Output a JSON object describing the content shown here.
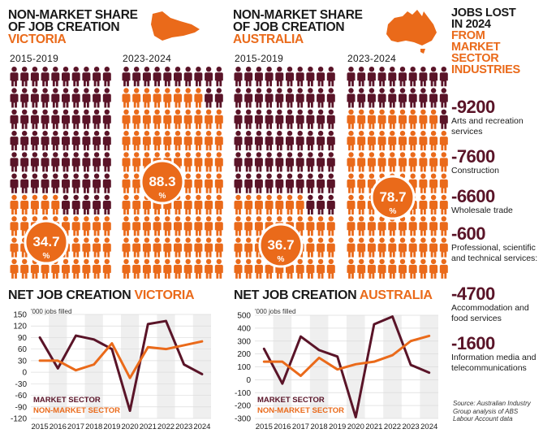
{
  "colors": {
    "market": "#5a1428",
    "nonmarket": "#ea6a1a",
    "grid": "#e6e6e6"
  },
  "panels": {
    "vic": {
      "title1": "NON-MARKET SHARE",
      "title2": "OF JOB CREATION",
      "region": "VICTORIA",
      "period1": "2015-2019",
      "period2": "2023-2024",
      "pct1": "34.7",
      "pct2": "88.3",
      "pct_sign": "%",
      "icon": "victoria-map-icon"
    },
    "aus": {
      "title1": "NON-MARKET SHARE",
      "title2": "OF JOB CREATION",
      "region": "AUSTRALIA",
      "period1": "2015-2019",
      "period2": "2023-2024",
      "pct1": "36.7",
      "pct2": "78.7",
      "pct_sign": "%",
      "icon": "australia-map-icon"
    }
  },
  "side": {
    "title1": "JOBS LOST",
    "title2": "IN 2024",
    "title3": "FROM",
    "title4": "MARKET",
    "title5": "SECTOR",
    "title6": "INDUSTRIES",
    "items": [
      {
        "value": "-9200",
        "label": "Arts and recreation services"
      },
      {
        "value": "-7600",
        "label": "Construction"
      },
      {
        "value": "-6600",
        "label": "Wholesale trade"
      },
      {
        "value": "-600",
        "label": "Professional, scientific and technical services:"
      },
      {
        "value": "-4700",
        "label": "Accommodation and food services"
      },
      {
        "value": "-1600",
        "label": "Information media and telecommunications"
      }
    ],
    "source": "Source: Australian Industry Group analysis of ABS Labour Account data"
  },
  "chart_data": [
    {
      "type": "line",
      "title_prefix": "NET JOB CREATION",
      "title_region": "VICTORIA",
      "units": "'000 jobs filled",
      "x": [
        "2015",
        "2016",
        "2017",
        "2018",
        "2019",
        "2020",
        "2021",
        "2022",
        "2023",
        "2024"
      ],
      "ylim": [
        -120,
        150
      ],
      "yticks": [
        150,
        120,
        90,
        60,
        30,
        0,
        -30,
        -60,
        -90,
        -120
      ],
      "series": [
        {
          "name": "MARKET SECTOR",
          "values": [
            90,
            10,
            95,
            85,
            60,
            -100,
            125,
            133,
            20,
            -5
          ]
        },
        {
          "name": "NON-MARKET SECTOR",
          "values": [
            30,
            30,
            5,
            20,
            75,
            -15,
            65,
            60,
            70,
            80
          ]
        }
      ]
    },
    {
      "type": "line",
      "title_prefix": "NET JOB CREATION",
      "title_region": "AUSTRALIA",
      "units": "'000 jobs filled",
      "x": [
        "2015",
        "2016",
        "2017",
        "2018",
        "2019",
        "2020",
        "2021",
        "2022",
        "2023",
        "2024"
      ],
      "ylim": [
        -300,
        500
      ],
      "yticks": [
        500,
        400,
        300,
        200,
        100,
        0,
        -100,
        -200,
        -300
      ],
      "series": [
        {
          "name": "MARKET SECTOR",
          "values": [
            240,
            -30,
            335,
            230,
            180,
            -290,
            430,
            490,
            115,
            55
          ]
        },
        {
          "name": "NON-MARKET SECTOR",
          "values": [
            140,
            140,
            30,
            170,
            80,
            120,
            140,
            190,
            300,
            340
          ]
        }
      ]
    }
  ]
}
